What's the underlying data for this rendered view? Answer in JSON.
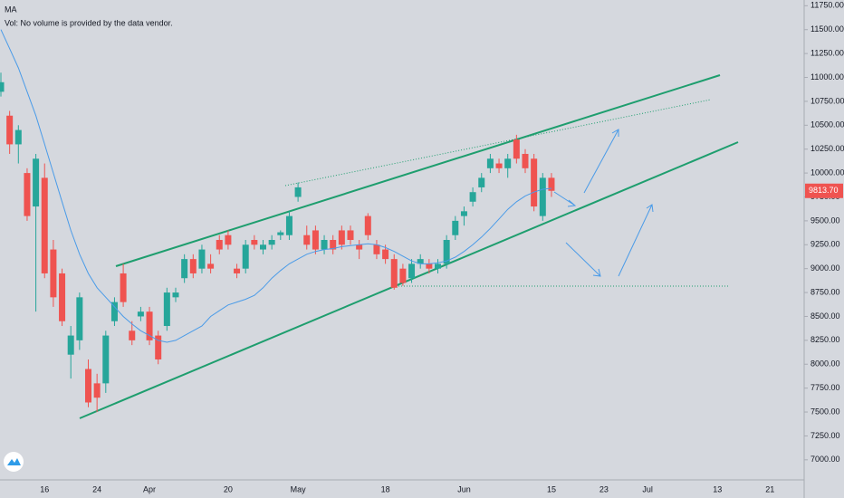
{
  "chart_data": {
    "type": "candlestick",
    "indicators": [
      "MA",
      "Vol: No volume is provided by the data vendor."
    ],
    "categories": [
      null,
      null,
      null,
      null,
      null,
      "16",
      null,
      null,
      null,
      null,
      null,
      "24",
      null,
      null,
      null,
      null,
      null,
      "Apr",
      null,
      null,
      null,
      null,
      null,
      null,
      null,
      null,
      "20",
      null,
      null,
      null,
      null,
      null,
      null,
      null,
      "May",
      null,
      null,
      null,
      null,
      null,
      null,
      null,
      null,
      null,
      "18",
      null,
      null,
      null,
      null,
      null,
      null,
      null,
      null,
      "Jun",
      null,
      null,
      null,
      null,
      null,
      null,
      null,
      null,
      null,
      "15",
      null,
      null,
      null,
      null,
      null,
      "23",
      null,
      null,
      null,
      null,
      "Jul",
      null,
      null,
      null,
      null,
      null,
      null,
      null,
      "13",
      null,
      null,
      null,
      null,
      null,
      "21"
    ],
    "open": [
      10850,
      10600,
      10300,
      10000,
      9650,
      9950,
      9200,
      8950,
      8100,
      8250,
      7950,
      7800,
      7800,
      8450,
      8950,
      8350,
      8500,
      8550,
      8300,
      8400,
      8700,
      8900,
      9100,
      9000,
      9050,
      9300,
      9350,
      9000,
      9000,
      9300,
      9200,
      9250,
      9350,
      9350,
      9750,
      9350,
      9400,
      9200,
      9300,
      9400,
      9400,
      9250,
      9550,
      9250,
      9200,
      9100,
      9000,
      8900,
      9050,
      9050,
      9000,
      9050,
      9350,
      9550,
      9700,
      9850,
      10050,
      10100,
      10050,
      10350,
      10200,
      10150,
      9550,
      9950,
      null,
      null,
      null,
      null,
      null,
      null,
      null,
      null,
      null,
      null,
      null,
      null,
      null,
      null,
      null,
      null,
      null,
      null,
      null,
      null,
      null,
      null,
      null,
      null,
      null
    ],
    "high": [
      11050,
      10650,
      10500,
      10050,
      10200,
      10100,
      9300,
      9000,
      8400,
      8750,
      8050,
      7900,
      8350,
      8700,
      9050,
      8450,
      8600,
      8600,
      8350,
      8800,
      8800,
      9150,
      9150,
      9250,
      9150,
      9350,
      9400,
      9050,
      9300,
      9350,
      9300,
      9350,
      9400,
      9600,
      9900,
      9450,
      9450,
      9350,
      9350,
      9450,
      9450,
      9300,
      9580,
      9300,
      9250,
      9150,
      9050,
      9100,
      9150,
      9100,
      9100,
      9350,
      9550,
      9650,
      9850,
      10000,
      10200,
      10150,
      10200,
      10400,
      10250,
      10200,
      10000,
      10000,
      null,
      null,
      null,
      null,
      null,
      null,
      null,
      null,
      null,
      null,
      null,
      null,
      null,
      null,
      null,
      null,
      null,
      null,
      null,
      null,
      null,
      null,
      null,
      null,
      null
    ],
    "low": [
      10800,
      10200,
      10100,
      9500,
      8550,
      8900,
      8600,
      8400,
      7850,
      8150,
      7550,
      7500,
      7700,
      8400,
      8600,
      8200,
      8450,
      8200,
      8000,
      8350,
      8650,
      8850,
      8900,
      8950,
      8950,
      9150,
      9200,
      8900,
      8950,
      9200,
      9150,
      9200,
      9300,
      9300,
      9700,
      9200,
      9150,
      9150,
      9150,
      9200,
      9250,
      9100,
      9300,
      9100,
      9050,
      8780,
      8820,
      8850,
      9000,
      8950,
      8950,
      9000,
      9300,
      9450,
      9650,
      9800,
      10000,
      10000,
      9950,
      10100,
      10000,
      9600,
      9500,
      9750,
      null,
      null,
      null,
      null,
      null,
      null,
      null,
      null,
      null,
      null,
      null,
      null,
      null,
      null,
      null,
      null,
      null,
      null,
      null,
      null,
      null,
      null,
      null,
      null,
      null
    ],
    "close": [
      10950,
      10300,
      10450,
      9550,
      10150,
      8950,
      8700,
      8450,
      8300,
      8700,
      7600,
      7650,
      8300,
      8650,
      8650,
      8250,
      8550,
      8250,
      8050,
      8750,
      8750,
      9100,
      8950,
      9200,
      9000,
      9200,
      9250,
      8950,
      9250,
      9250,
      9250,
      9300,
      9380,
      9550,
      9850,
      9250,
      9200,
      9300,
      9200,
      9250,
      9300,
      9200,
      9350,
      9150,
      9100,
      8800,
      8850,
      9050,
      9100,
      9000,
      9050,
      9300,
      9500,
      9600,
      9800,
      9950,
      10150,
      10050,
      10150,
      10150,
      10050,
      9650,
      9950,
      9813.7,
      null,
      null,
      null,
      null,
      null,
      null,
      null,
      null,
      null,
      null,
      null,
      null,
      null,
      null,
      null,
      null,
      null,
      null,
      null,
      null,
      null,
      null,
      null,
      null,
      null
    ],
    "ma": [
      11500,
      11300,
      11100,
      10850,
      10600,
      10300,
      10000,
      9700,
      9400,
      9150,
      8950,
      8800,
      8700,
      8600,
      8500,
      8420,
      8350,
      8300,
      8250,
      8230,
      8250,
      8300,
      8350,
      8400,
      8500,
      8560,
      8620,
      8650,
      8680,
      8720,
      8800,
      8900,
      8980,
      9050,
      9100,
      9150,
      9180,
      9200,
      9210,
      9230,
      9240,
      9250,
      9260,
      9250,
      9220,
      9180,
      9130,
      9080,
      9050,
      9050,
      9060,
      9080,
      9120,
      9180,
      9250,
      9330,
      9420,
      9520,
      9620,
      9700,
      9760,
      9800,
      9830,
      9840,
      null,
      null,
      null,
      null,
      null,
      null,
      null,
      null,
      null,
      null,
      null,
      null,
      null,
      null,
      null,
      null,
      null,
      null,
      null,
      null,
      null,
      null,
      null,
      null,
      null
    ],
    "up_color": "#26a69a",
    "down_color": "#ef5350",
    "ma_color": "#4a9be8",
    "last_price": {
      "value": 9813.7,
      "label": "9813.70"
    },
    "ylim": [
      6790,
      11810
    ],
    "yticks": [
      {
        "value": 7000,
        "label": "7000.00"
      },
      {
        "value": 7250,
        "label": "7250.00"
      },
      {
        "value": 7500,
        "label": "7500.00"
      },
      {
        "value": 7750,
        "label": "7750.00"
      },
      {
        "value": 8000,
        "label": "8000.00"
      },
      {
        "value": 8250,
        "label": "8250.00"
      },
      {
        "value": 8500,
        "label": "8500.00"
      },
      {
        "value": 8750,
        "label": "8750.00"
      },
      {
        "value": 9000,
        "label": "9000.00"
      },
      {
        "value": 9250,
        "label": "9250.00"
      },
      {
        "value": 9500,
        "label": "9500.00"
      },
      {
        "value": 9750,
        "label": "9750.00"
      },
      {
        "value": 10000,
        "label": "10000.00"
      },
      {
        "value": 10250,
        "label": "10250.00"
      },
      {
        "value": 10500,
        "label": "10500.00"
      },
      {
        "value": 10750,
        "label": "10750.00"
      },
      {
        "value": 11000,
        "label": "11000.00"
      },
      {
        "value": 11250,
        "label": "11250.00"
      },
      {
        "value": 11500,
        "label": "11500.00"
      },
      {
        "value": 11750,
        "label": "11750.00"
      }
    ],
    "grid": false
  }
}
